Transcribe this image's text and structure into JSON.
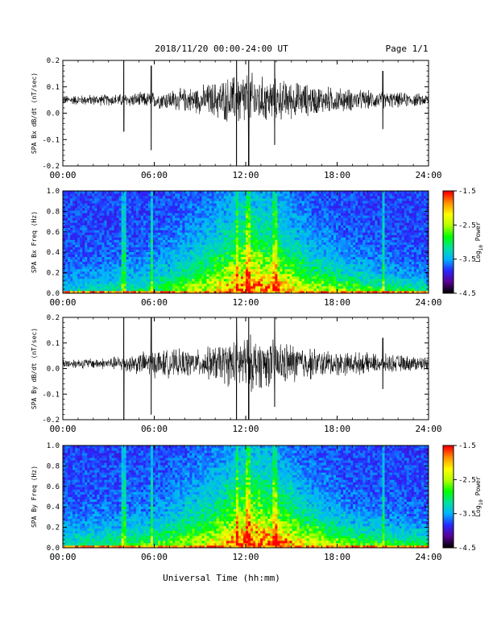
{
  "header": {
    "title": "2018/11/20  00:00-24:00 UT",
    "page": "Page 1/1"
  },
  "footer": {
    "xlabel": "Universal Time (hh:mm)"
  },
  "colorbar": {
    "label_prefix": "Log",
    "label_sub": "10",
    "label_suffix": " Power",
    "ticks": [
      "-1.5",
      "-2.5",
      "-3.5",
      "-4.5"
    ],
    "range": [
      -4.5,
      -1.5
    ],
    "colors": [
      "#000000",
      "#5a0096",
      "#2828ff",
      "#00b4ff",
      "#00e0a0",
      "#00ff00",
      "#b4ff00",
      "#ffff00",
      "#ff9600",
      "#ff0000"
    ]
  },
  "chart_data": [
    {
      "type": "line",
      "ylabel": "SPA Bx dB/dt (nT/sec)",
      "xlim": [
        0,
        24
      ],
      "ylim": [
        -0.2,
        0.2
      ],
      "yticks": [
        "0.2",
        "0.1",
        "0.0",
        "-0.1",
        "-0.2"
      ],
      "xticks": [
        "00:00",
        "06:00",
        "12:00",
        "18:00",
        "24:00"
      ],
      "series": [
        {
          "baseline": 0.05,
          "envelope": [
            {
              "x": 0,
              "amp": 0.02
            },
            {
              "x": 3,
              "amp": 0.025
            },
            {
              "x": 6,
              "amp": 0.035
            },
            {
              "x": 9,
              "amp": 0.06
            },
            {
              "x": 11,
              "amp": 0.1
            },
            {
              "x": 12,
              "amp": 0.13
            },
            {
              "x": 13,
              "amp": 0.1
            },
            {
              "x": 15,
              "amp": 0.08
            },
            {
              "x": 17,
              "amp": 0.06
            },
            {
              "x": 20,
              "amp": 0.04
            },
            {
              "x": 24,
              "amp": 0.025
            }
          ],
          "spikes": [
            {
              "x": 4.0,
              "min": -0.07,
              "max": 0.2
            },
            {
              "x": 5.8,
              "min": -0.14,
              "max": 0.18
            },
            {
              "x": 11.4,
              "min": -0.2,
              "max": 0.2
            },
            {
              "x": 12.2,
              "min": -0.2,
              "max": 0.2
            },
            {
              "x": 13.9,
              "min": -0.12,
              "max": 0.2
            },
            {
              "x": 21.0,
              "min": -0.06,
              "max": 0.16
            }
          ]
        }
      ]
    },
    {
      "type": "heatmap",
      "ylabel": "SPA Bx Freq (Hz)",
      "xlim": [
        0,
        24
      ],
      "ylim": [
        0,
        1
      ],
      "zlim": [
        -4.5,
        -1.5
      ],
      "yticks": [
        "1.0",
        "0.8",
        "0.6",
        "0.4",
        "0.2",
        "0.0"
      ],
      "xticks": [
        "00:00",
        "06:00",
        "12:00",
        "18:00",
        "24:00"
      ],
      "activity": [
        {
          "x": 0,
          "level": 0.2,
          "height": 0.15
        },
        {
          "x": 6,
          "level": 0.35,
          "height": 0.2
        },
        {
          "x": 10,
          "level": 0.6,
          "height": 0.4
        },
        {
          "x": 12,
          "level": 0.8,
          "height": 0.55
        },
        {
          "x": 14,
          "level": 0.75,
          "height": 0.45
        },
        {
          "x": 16,
          "level": 0.6,
          "height": 0.3
        },
        {
          "x": 19,
          "level": 0.45,
          "height": 0.2
        },
        {
          "x": 24,
          "level": 0.3,
          "height": 0.12
        }
      ],
      "streaks": [
        4.0,
        5.8,
        11.4,
        12.2,
        13.9,
        21.0
      ]
    },
    {
      "type": "line",
      "ylabel": "SPA By dB/dt (nT/sec)",
      "xlim": [
        0,
        24
      ],
      "ylim": [
        -0.2,
        0.2
      ],
      "yticks": [
        "0.2",
        "0.1",
        "0.0",
        "-0.1",
        "-0.2"
      ],
      "xticks": [
        "00:00",
        "06:00",
        "12:00",
        "18:00",
        "24:00"
      ],
      "series": [
        {
          "baseline": 0.02,
          "envelope": [
            {
              "x": 0,
              "amp": 0.02
            },
            {
              "x": 3,
              "amp": 0.025
            },
            {
              "x": 6,
              "amp": 0.06
            },
            {
              "x": 9,
              "amp": 0.06
            },
            {
              "x": 11,
              "amp": 0.1
            },
            {
              "x": 12,
              "amp": 0.13
            },
            {
              "x": 13,
              "amp": 0.11
            },
            {
              "x": 15,
              "amp": 0.09
            },
            {
              "x": 17,
              "amp": 0.06
            },
            {
              "x": 20,
              "amp": 0.045
            },
            {
              "x": 24,
              "amp": 0.03
            }
          ],
          "spikes": [
            {
              "x": 4.0,
              "min": -0.2,
              "max": 0.2
            },
            {
              "x": 5.8,
              "min": -0.18,
              "max": 0.2
            },
            {
              "x": 11.4,
              "min": -0.2,
              "max": 0.2
            },
            {
              "x": 12.2,
              "min": -0.2,
              "max": 0.2
            },
            {
              "x": 13.9,
              "min": -0.15,
              "max": 0.2
            },
            {
              "x": 21.0,
              "min": -0.08,
              "max": 0.12
            }
          ]
        }
      ]
    },
    {
      "type": "heatmap",
      "ylabel": "SPA By Freq (Hz)",
      "xlim": [
        0,
        24
      ],
      "ylim": [
        0,
        1
      ],
      "zlim": [
        -4.5,
        -1.5
      ],
      "yticks": [
        "1.0",
        "0.8",
        "0.6",
        "0.4",
        "0.2",
        "0.0"
      ],
      "xticks": [
        "00:00",
        "06:00",
        "12:00",
        "18:00",
        "24:00"
      ],
      "activity": [
        {
          "x": 0,
          "level": 0.25,
          "height": 0.18
        },
        {
          "x": 6,
          "level": 0.4,
          "height": 0.22
        },
        {
          "x": 10,
          "level": 0.6,
          "height": 0.4
        },
        {
          "x": 12,
          "level": 0.82,
          "height": 0.55
        },
        {
          "x": 14,
          "level": 0.78,
          "height": 0.45
        },
        {
          "x": 16,
          "level": 0.65,
          "height": 0.3
        },
        {
          "x": 19,
          "level": 0.45,
          "height": 0.2
        },
        {
          "x": 24,
          "level": 0.35,
          "height": 0.15
        }
      ],
      "streaks": [
        4.0,
        5.8,
        11.4,
        12.2,
        13.9,
        21.0
      ]
    }
  ]
}
